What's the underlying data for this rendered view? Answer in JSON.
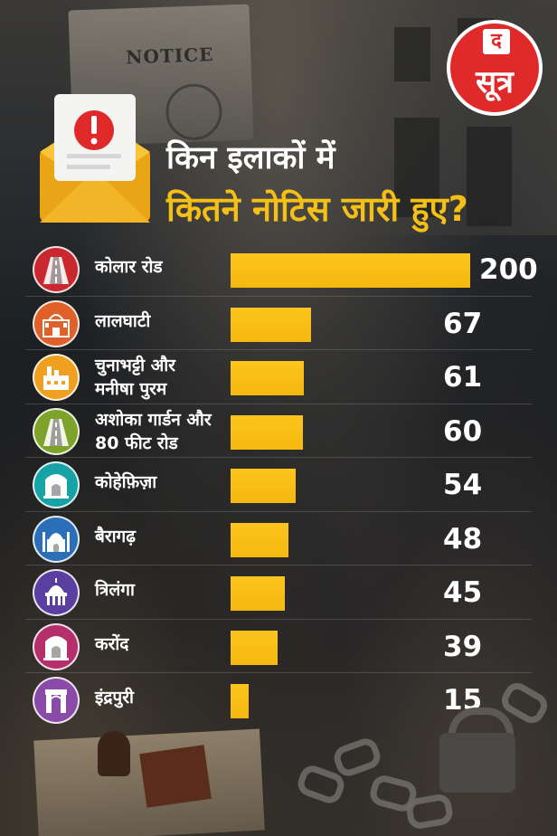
{
  "background": {
    "notice_text": "NOTICE"
  },
  "logo": {
    "top_letter": "द",
    "main_text": "सूत्र"
  },
  "title": {
    "line1": "किन इलाकों में",
    "line2": "कितने नोटिस जारी हुए?"
  },
  "colors": {
    "bar": "#f5b80f",
    "title_highlight": "#f4c018",
    "text": "#ffffff"
  },
  "chart_data": {
    "type": "bar",
    "orientation": "horizontal",
    "title": "किन इलाकों में कितने नोटिस जारी हुए?",
    "categories": [
      "कोलार रोड",
      "लालघाटी",
      "चुनाभट्टी और मनीषा पुरम",
      "अशोका गार्डन और 80 फीट रोड",
      "कोहेफ़िज़ा",
      "बैरागढ़",
      "त्रिलंगा",
      "करोंद",
      "इंद्रपुरी"
    ],
    "category_lines": [
      [
        "कोलार रोड"
      ],
      [
        "लालघाटी"
      ],
      [
        "चुनाभट्टी और",
        "मनीषा पुरम"
      ],
      [
        "अशोका गार्डन और",
        "80 फीट रोड"
      ],
      [
        "कोहेफ़िज़ा"
      ],
      [
        "बैरागढ़"
      ],
      [
        "त्रिलंगा"
      ],
      [
        "करोंद"
      ],
      [
        "इंद्रपुरी"
      ]
    ],
    "values": [
      200,
      67,
      61,
      60,
      54,
      48,
      45,
      39,
      15
    ],
    "value_labels": [
      "200",
      "67",
      "61",
      "60",
      "54",
      "48",
      "45",
      "39",
      "15"
    ],
    "icons": [
      "road-icon",
      "gateway-icon",
      "factory-icon",
      "road-icon",
      "gate-arch-icon",
      "taj-mahal-icon",
      "domed-building-icon",
      "gate-arch-icon",
      "india-gate-icon"
    ],
    "icon_colors": [
      "#c8282e",
      "#e0602a",
      "#f0a020",
      "#7ea32a",
      "#17a2a6",
      "#2a6fb8",
      "#5a3ea0",
      "#b5306a",
      "#8a4aa8"
    ],
    "xlim": [
      0,
      200
    ],
    "grid": false,
    "legend": "none"
  }
}
